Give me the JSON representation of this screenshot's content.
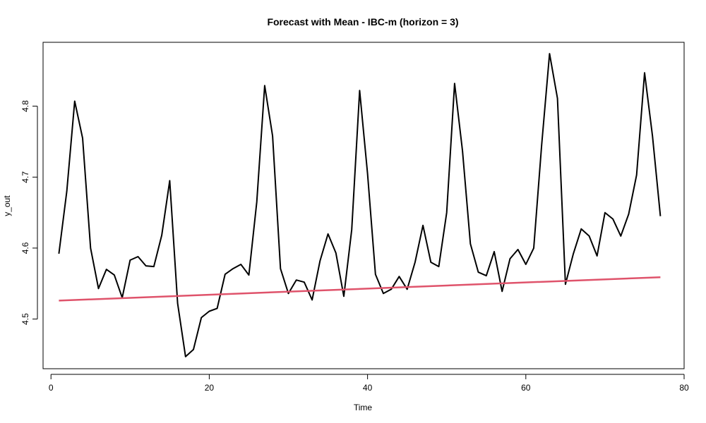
{
  "chart_data": {
    "type": "line",
    "title": "Forecast with Mean - IBC-m (horizon = 3)",
    "xlabel": "Time",
    "ylabel": "y_out",
    "xlim": [
      -1,
      80
    ],
    "ylim": [
      4.43,
      4.89
    ],
    "xticks": [
      0,
      20,
      40,
      60,
      80
    ],
    "yticks": [
      4.5,
      4.6,
      4.7,
      4.8
    ],
    "grid": false,
    "colors": {
      "actual": "#000000",
      "mean": "#DF536B"
    },
    "series": [
      {
        "key": "actual",
        "x": [
          1,
          2,
          3,
          4,
          5,
          6,
          7,
          8,
          9,
          10,
          11,
          12,
          13,
          14,
          15,
          16,
          17,
          18,
          19,
          20,
          21,
          22,
          23,
          24,
          25,
          26,
          27,
          28,
          29,
          30,
          31,
          32,
          33,
          34,
          35,
          36,
          37,
          38,
          39,
          40,
          41,
          42,
          43,
          44,
          45,
          46,
          47,
          48,
          49,
          50,
          51,
          52,
          53,
          54,
          55,
          56,
          57,
          58,
          59,
          60,
          61,
          62,
          63,
          64,
          65,
          66,
          67,
          68,
          69,
          70,
          71,
          72,
          73,
          74,
          75,
          76,
          77
        ],
        "values": [
          4.592,
          4.68,
          4.807,
          4.755,
          4.6,
          4.543,
          4.57,
          4.562,
          4.53,
          4.583,
          4.588,
          4.575,
          4.574,
          4.618,
          4.695,
          4.522,
          4.447,
          4.457,
          4.502,
          4.511,
          4.515,
          4.563,
          4.571,
          4.577,
          4.562,
          4.665,
          4.829,
          4.758,
          4.571,
          4.536,
          4.555,
          4.552,
          4.527,
          4.582,
          4.62,
          4.593,
          4.532,
          4.626,
          4.822,
          4.705,
          4.563,
          4.536,
          4.542,
          4.56,
          4.542,
          4.58,
          4.632,
          4.58,
          4.574,
          4.65,
          4.832,
          4.737,
          4.606,
          4.566,
          4.561,
          4.595,
          4.539,
          4.585,
          4.598,
          4.577,
          4.6,
          4.745,
          4.874,
          4.811,
          4.549,
          4.592,
          4.627,
          4.617,
          4.589,
          4.65,
          4.641,
          4.617,
          4.648,
          4.703,
          4.847,
          4.758,
          4.645
        ]
      },
      {
        "key": "mean",
        "x": [
          1,
          77
        ],
        "values": [
          4.526,
          4.559
        ]
      }
    ]
  }
}
